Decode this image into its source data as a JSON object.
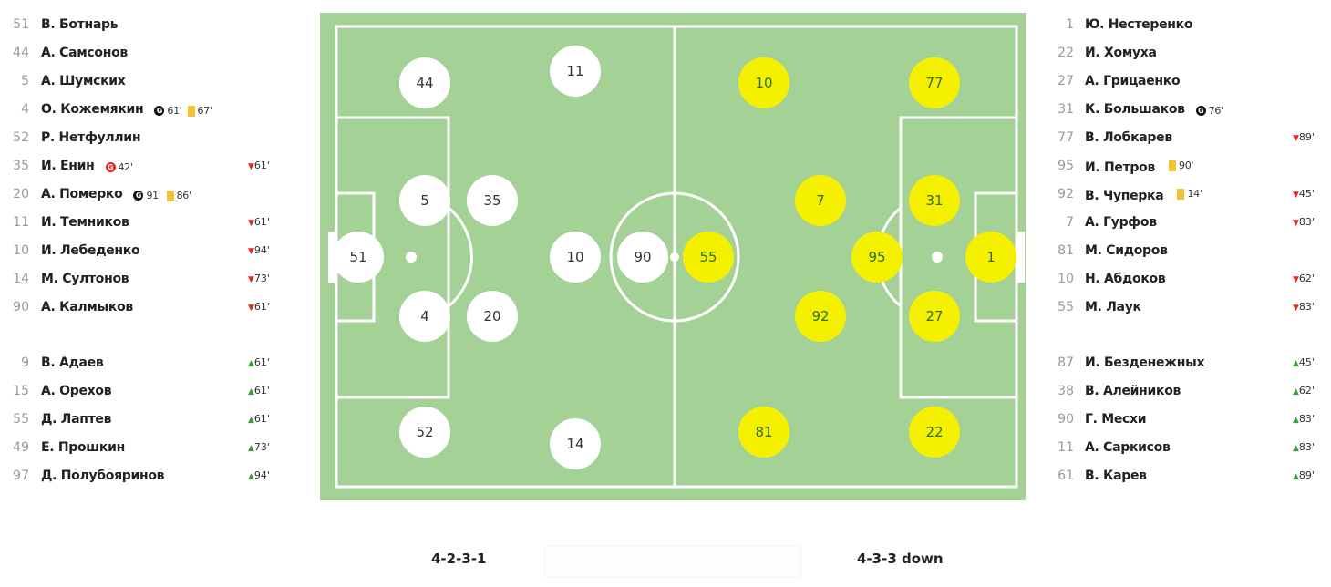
{
  "home": {
    "formation": "4-2-3-1",
    "color": "#ffffff",
    "starters": [
      {
        "num": "51",
        "name": "В. Ботнарь",
        "events": []
      },
      {
        "num": "44",
        "name": "А. Самсонов",
        "events": []
      },
      {
        "num": "5",
        "name": "А. Шумских",
        "events": []
      },
      {
        "num": "4",
        "name": "О. Кожемякин",
        "events": [
          {
            "type": "goal",
            "minute": "61'"
          },
          {
            "type": "yellow-card",
            "minute": "67'"
          }
        ]
      },
      {
        "num": "52",
        "name": "Р. Нетфуллин",
        "events": []
      },
      {
        "num": "35",
        "name": "И. Енин",
        "events": [
          {
            "type": "own-goal",
            "minute": "42'"
          }
        ],
        "sub_off": "61'"
      },
      {
        "num": "20",
        "name": "А. Померко",
        "events": [
          {
            "type": "goal",
            "minute": "91'"
          },
          {
            "type": "yellow-card",
            "minute": "86'"
          }
        ]
      },
      {
        "num": "11",
        "name": "И. Темников",
        "events": [],
        "sub_off": "61'"
      },
      {
        "num": "10",
        "name": "И. Лебеденко",
        "events": [],
        "sub_off": "94'"
      },
      {
        "num": "14",
        "name": "М. Султонов",
        "events": [],
        "sub_off": "73'"
      },
      {
        "num": "90",
        "name": "А. Калмыков",
        "events": [],
        "sub_off": "61'"
      }
    ],
    "subs": [
      {
        "num": "9",
        "name": "В. Адаев",
        "sub_on": "61'"
      },
      {
        "num": "15",
        "name": "А. Орехов",
        "sub_on": "61'"
      },
      {
        "num": "55",
        "name": "Д. Лаптев",
        "sub_on": "61'"
      },
      {
        "num": "49",
        "name": "Е. Прошкин",
        "sub_on": "73'"
      },
      {
        "num": "97",
        "name": "Д. Полубояринов",
        "sub_on": "94'"
      }
    ],
    "pitch": [
      "44",
      "11",
      "5",
      "35",
      "51",
      "10",
      "90",
      "4",
      "20",
      "52",
      "14"
    ]
  },
  "away": {
    "formation": "4-3-3 down",
    "color": "#f5f000",
    "starters": [
      {
        "num": "1",
        "name": "Ю. Нестеренко",
        "events": []
      },
      {
        "num": "22",
        "name": "И. Хомуха",
        "events": []
      },
      {
        "num": "27",
        "name": "А. Грицаенко",
        "events": []
      },
      {
        "num": "31",
        "name": "К. Большаков",
        "events": [
          {
            "type": "goal",
            "minute": "76'"
          }
        ]
      },
      {
        "num": "77",
        "name": "В. Лобкарев",
        "events": [],
        "sub_off": "89'"
      },
      {
        "num": "95",
        "name": "И. Петров",
        "events": [
          {
            "type": "yellow-card",
            "minute": "90'"
          }
        ]
      },
      {
        "num": "92",
        "name": "В. Чуперка",
        "events": [
          {
            "type": "yellow-card",
            "minute": "14'"
          }
        ],
        "sub_off": "45'"
      },
      {
        "num": "7",
        "name": "А. Гурфов",
        "events": [],
        "sub_off": "83'"
      },
      {
        "num": "81",
        "name": "М. Сидоров",
        "events": []
      },
      {
        "num": "10",
        "name": "Н. Абдоков",
        "events": [],
        "sub_off": "62'"
      },
      {
        "num": "55",
        "name": "М. Лаук",
        "events": [],
        "sub_off": "83'"
      }
    ],
    "subs": [
      {
        "num": "87",
        "name": "И. Безденежных",
        "sub_on": "45'"
      },
      {
        "num": "38",
        "name": "В. Алейников",
        "sub_on": "62'"
      },
      {
        "num": "90",
        "name": "Г. Месхи",
        "sub_on": "83'"
      },
      {
        "num": "11",
        "name": "А. Саркисов",
        "sub_on": "83'"
      },
      {
        "num": "61",
        "name": "В. Карев",
        "sub_on": "89'"
      }
    ],
    "pitch": [
      "10",
      "77",
      "7",
      "31",
      "55",
      "95",
      "1",
      "92",
      "27",
      "81",
      "22"
    ]
  },
  "icons": {
    "goal": "G",
    "own_goal": "G",
    "sub_off": "▼",
    "sub_on": "▲"
  }
}
